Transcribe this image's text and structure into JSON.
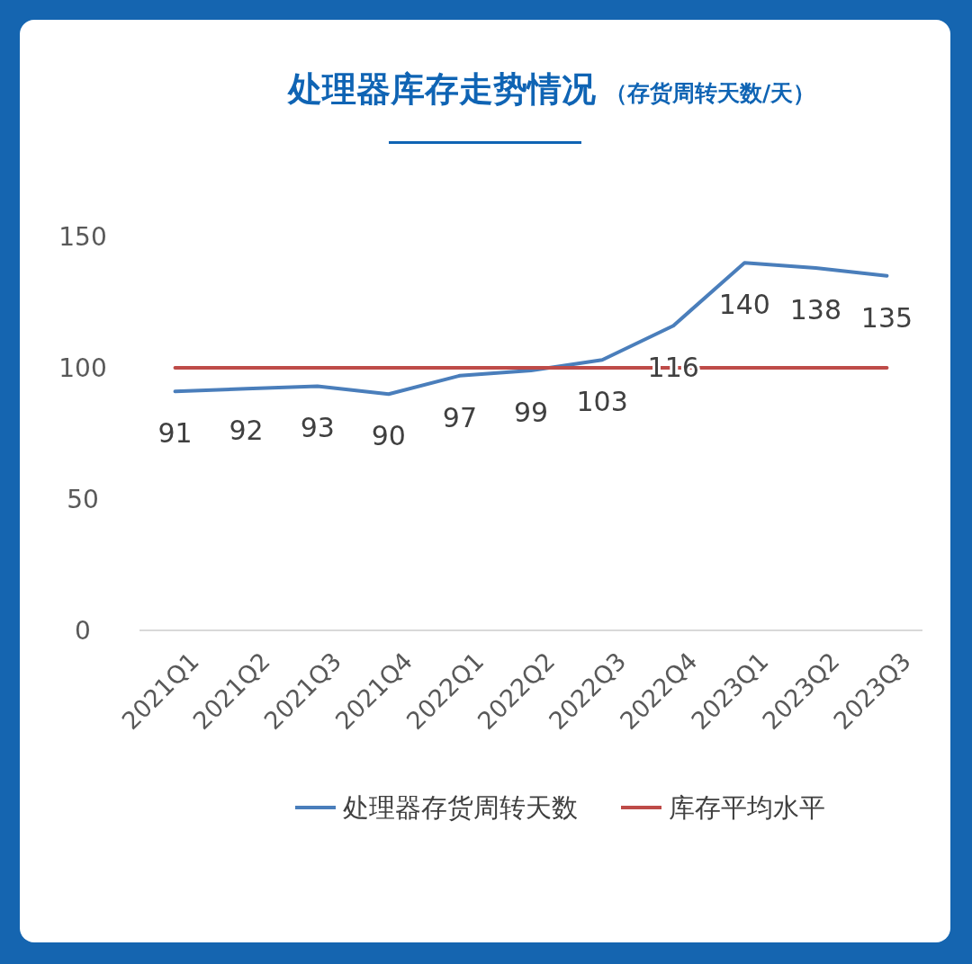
{
  "chart_data": {
    "type": "line",
    "title": "处理器库存走势情况",
    "subtitle": "（存货周转天数/天）",
    "categories": [
      "2021Q1",
      "2021Q2",
      "2021Q3",
      "2021Q4",
      "2022Q1",
      "2022Q2",
      "2022Q3",
      "2022Q4",
      "2023Q1",
      "2023Q2",
      "2023Q3"
    ],
    "series": [
      {
        "name": "处理器存货周转天数",
        "color": "#4a7ebb",
        "values": [
          91,
          92,
          93,
          90,
          97,
          99,
          103,
          116,
          140,
          138,
          135
        ],
        "value_labels": [
          "91",
          "92",
          "93",
          "90",
          "97",
          "99",
          "103",
          "116",
          "140",
          "138",
          "135"
        ]
      },
      {
        "name": "库存平均水平",
        "color": "#be4b48",
        "values": [
          100,
          100,
          100,
          100,
          100,
          100,
          100,
          100,
          100,
          100,
          100
        ]
      }
    ],
    "ylim": [
      0,
      150
    ],
    "yticks": [
      0,
      50,
      100,
      150
    ],
    "grid": false,
    "legend": "bottom"
  }
}
